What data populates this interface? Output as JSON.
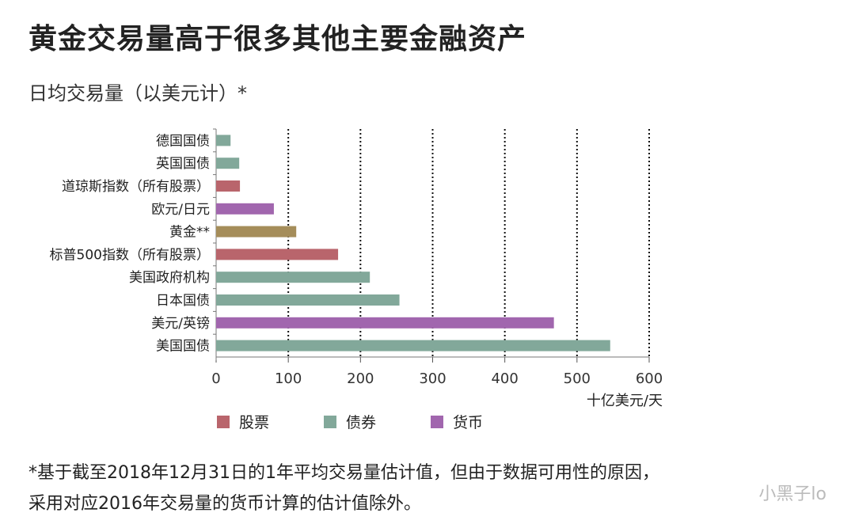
{
  "title": "黄金交易量高于很多其他主要金融资产",
  "subtitle": "日均交易量（以美元计）*",
  "chart_data": {
    "type": "bar",
    "orientation": "horizontal",
    "categories": [
      "德国国债",
      "英国国债",
      "道琼斯指数（所有股票）",
      "欧元/日元",
      "黄金**",
      "标普500指数（所有股票）",
      "美国政府机构",
      "日本国债",
      "美元/英镑",
      "美国国债"
    ],
    "values": [
      20,
      32,
      33,
      80,
      111,
      169,
      213,
      254,
      468,
      546
    ],
    "groups": [
      "债券",
      "债券",
      "股票",
      "货币",
      "黄金",
      "股票",
      "债券",
      "债券",
      "货币",
      "债券"
    ],
    "xlim": [
      0,
      600
    ],
    "xticks": [
      "0",
      "100",
      "200",
      "300",
      "400",
      "500",
      "600"
    ],
    "xlabel": "十亿美元/天",
    "grid": "vertical dotted",
    "legend": [
      {
        "label": "股票",
        "color": "#b9656c"
      },
      {
        "label": "债券",
        "color": "#82a89a"
      },
      {
        "label": "货币",
        "color": "#a166ae"
      }
    ],
    "colors": {
      "股票": "#b9656c",
      "债券": "#82a89a",
      "货币": "#a166ae",
      "黄金": "#a58d5a"
    },
    "legend_position": "bottom"
  },
  "footnote": [
    "*基于截至2018年12月31日的1年平均交易量估计值，但由于数据可用性的原因，",
    "采用对应2016年交易量的货币计算的估计值除外。"
  ],
  "watermark": "小黑子lo"
}
